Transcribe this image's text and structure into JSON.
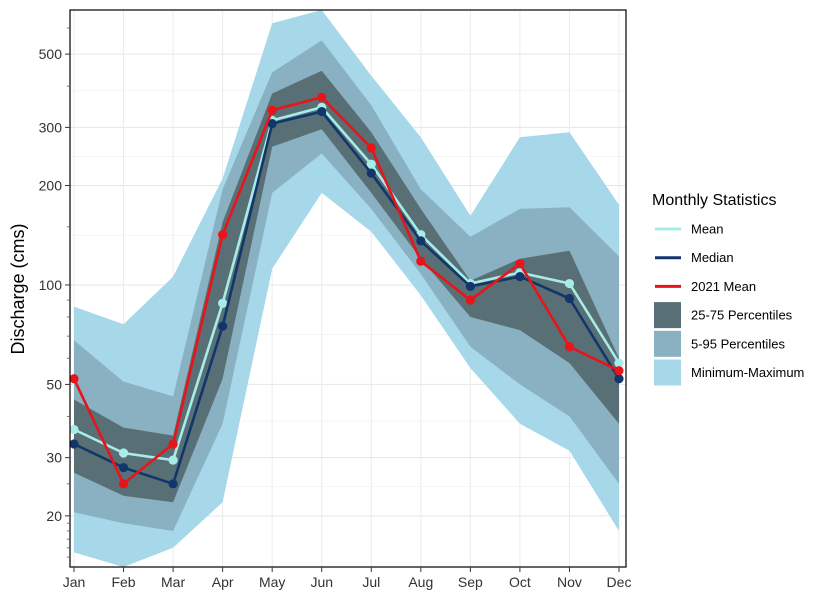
{
  "chart_data": {
    "type": "line",
    "title": "",
    "xlabel": "",
    "ylabel": "Discharge (cms)",
    "y_scale": "log",
    "ylim": [
      14,
      680
    ],
    "yticks": [
      20,
      30,
      50,
      100,
      200,
      300,
      500
    ],
    "ytick_labels": [
      "20",
      "30",
      "50",
      "100",
      "200",
      "300",
      "500"
    ],
    "categories": [
      "Jan",
      "Feb",
      "Mar",
      "Apr",
      "May",
      "Jun",
      "Jul",
      "Aug",
      "Sep",
      "Oct",
      "Nov",
      "Dec"
    ],
    "legend_title": "Monthly Statistics",
    "legend_position": "right",
    "bands": [
      {
        "name": "Minimum-Maximum",
        "color": "#a6d8ea",
        "lower": [
          15.5,
          14,
          16,
          22,
          112,
          190,
          145,
          93,
          56,
          38,
          31.5,
          18
        ],
        "upper": [
          86,
          76,
          106,
          210,
          620,
          680,
          430,
          280,
          162,
          280,
          290,
          175
        ]
      },
      {
        "name": "5-95 Percentiles",
        "color": "#8ab1c2",
        "lower": [
          20.5,
          19,
          18,
          38,
          190,
          250,
          170,
          108,
          65,
          50,
          40,
          25
        ]
      },
      {
        "name": "25-75 Percentiles",
        "color": "#587075",
        "lower": [
          27,
          23,
          22,
          52,
          262,
          296,
          190,
          120,
          80,
          73,
          58,
          38
        ],
        "upper": [
          45,
          37,
          35,
          155,
          380,
          445,
          290,
          170,
          103,
          120,
          127,
          60
        ]
      }
    ],
    "band_95_upper": [
      68,
      51,
      46,
      195,
      440,
      550,
      350,
      195,
      140,
      170,
      172,
      122
    ],
    "series": [
      {
        "name": "Mean",
        "color": "#a8ece8",
        "values": [
          36.5,
          31,
          29.5,
          88,
          315,
          345,
          232,
          142,
          101,
          109,
          101,
          58
        ]
      },
      {
        "name": "Median",
        "color": "#12366b",
        "values": [
          33,
          28,
          25,
          75,
          308,
          335,
          218,
          136,
          99,
          106,
          91,
          52
        ]
      },
      {
        "name": "2021 Mean",
        "color": "#e8141a",
        "values": [
          52,
          25,
          33,
          142,
          338,
          370,
          260,
          118,
          90,
          116,
          65,
          55
        ]
      }
    ],
    "grid": true
  }
}
